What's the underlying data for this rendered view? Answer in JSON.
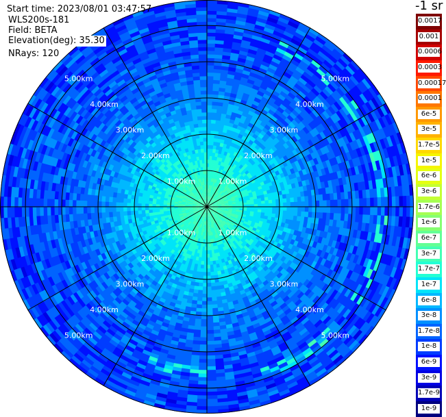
{
  "header": {
    "start_time": "Start time: 2023/08/01 03:47:57",
    "instrument": "WLS200s-181",
    "field": "Field: BETA",
    "elevation": "Elevation(deg): 35.30",
    "nrays": "NRays: 120"
  },
  "colorbar": {
    "title": "-1 sr",
    "labels": [
      "0.0017",
      "0.001",
      "0.0006",
      "0.0003",
      "0.00017",
      "0.0001",
      "6e-5",
      "3e-5",
      "1.7e-5",
      "1e-5",
      "6e-6",
      "3e-6",
      "1.7e-6",
      "1e-6",
      "6e-7",
      "3e-7",
      "1.7e-7",
      "1e-7",
      "6e-8",
      "3e-8",
      "1.7e-8",
      "1e-8",
      "6e-9",
      "3e-9",
      "1.7e-9",
      "1e-9"
    ],
    "colors": [
      "#7f0000",
      "#a50000",
      "#d00000",
      "#ff1a00",
      "#ff4800",
      "#ff7700",
      "#ff9800",
      "#ffb200",
      "#ffd800",
      "#f5f500",
      "#e4ff13",
      "#c4ff33",
      "#a5ff52",
      "#86ff71",
      "#62ff95",
      "#43ffb4",
      "#23ffd4",
      "#00e4f8",
      "#00b8ff",
      "#0090ff",
      "#0064ff",
      "#003cff",
      "#0010ff",
      "#0000e4",
      "#0000b6",
      "#00007f"
    ]
  },
  "chart_data": {
    "type": "heatmap",
    "subtype": "polar-ppi",
    "nrays": 120,
    "ring_labels": [
      "1.00km",
      "2.00km",
      "3.00km",
      "4.00km",
      "5.00km"
    ],
    "ring_ranges_km": [
      1,
      2,
      3,
      4,
      5
    ],
    "max_range_km": 5.7,
    "radial_lines_every_deg": 30,
    "ring_label_azimuths_deg": [
      315,
      45,
      135,
      225
    ],
    "field": "BETA",
    "colorbar_title": "-1 sr",
    "profile_log10_beta_by_range": {
      "range_km": [
        0.0,
        0.5,
        1.0,
        1.5,
        2.0,
        2.5,
        3.0,
        3.5,
        4.0,
        4.5,
        5.0,
        5.5,
        5.7
      ],
      "log10_beta": [
        -6.5,
        -6.6,
        -6.8,
        -7.0,
        -7.15,
        -7.4,
        -7.6,
        -7.75,
        -7.85,
        -7.9,
        -7.95,
        -8.0,
        -8.0
      ]
    },
    "features": [
      {
        "label": "",
        "azimuth_deg_range": [
          20,
          160
        ],
        "range_km": 4.8,
        "log10_beta": -7.0
      },
      {
        "label": "",
        "azimuth_deg_range": [
          175,
          200
        ],
        "range_km": 4.5,
        "log10_beta": -7.0
      }
    ]
  }
}
